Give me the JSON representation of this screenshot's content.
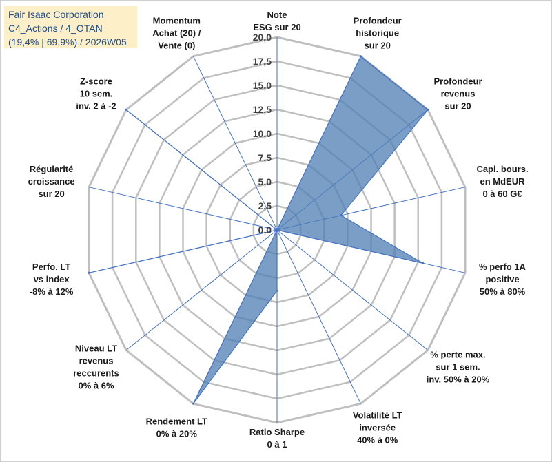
{
  "header": {
    "line1": "Fair Isaac Corporation",
    "line2": "C4_Actions / 4_OTAN",
    "line3": "(19,4% | 69,9%) / 2026W05"
  },
  "colors": {
    "fill": "#4d7eb3",
    "stroke": "#4472c4",
    "grid": "#bfbfbf",
    "title_bg": "#fdf0c8",
    "title_text": "#1f4e8c"
  },
  "chart_data": {
    "type": "radar",
    "title": "Fair Isaac Corporation",
    "rlim": [
      0,
      20
    ],
    "tick_values": [
      0,
      2.5,
      5,
      7.5,
      10,
      12.5,
      15,
      17.5,
      20
    ],
    "tick_labels": [
      "0,0",
      "2,5",
      "5,0",
      "7,5",
      "10,0",
      "12,5",
      "15,0",
      "17,5",
      "20,0"
    ],
    "axes": [
      {
        "label": [
          "Note",
          "ESG sur 20"
        ],
        "value": 0
      },
      {
        "label": [
          "Profondeur",
          "historique",
          "sur 20"
        ],
        "value": 20
      },
      {
        "label": [
          "Profondeur",
          "revenus",
          "sur 20"
        ],
        "value": 20
      },
      {
        "label": [
          "Capi. bours.",
          "en MdEUR",
          "0 à 60 G€"
        ],
        "value": 6.8
      },
      {
        "label": [
          "% perfo 1A",
          "positive",
          "50% à 80%"
        ],
        "value": 15.5
      },
      {
        "label": [
          "% perte max.",
          "sur 1 sem.",
          "inv. 50% à 20%"
        ],
        "value": 0
      },
      {
        "label": [
          "Volatilité LT",
          "inversée",
          "40% à 0%"
        ],
        "value": 0
      },
      {
        "label": [
          "Ratio Sharpe",
          "0 à 1"
        ],
        "value": 6.3
      },
      {
        "label": [
          "Rendement LT",
          "0% à 20%"
        ],
        "value": 20
      },
      {
        "label": [
          "Niveau LT",
          "revenus",
          "reccurents",
          "0% à 6%"
        ],
        "value": 0
      },
      {
        "label": [
          "Perfo. LT",
          "vs index",
          "-8% à 12%"
        ],
        "value": 20
      },
      {
        "label": [
          "Régularité",
          "croissance",
          "sur 20"
        ],
        "value": 0
      },
      {
        "label": [
          "Z-score",
          "10 sem.",
          "inv. 2 à -2"
        ],
        "value": 20
      },
      {
        "label": [
          "Momentum",
          "Achat (20) /",
          "Vente (0)"
        ],
        "value": 0
      }
    ]
  }
}
